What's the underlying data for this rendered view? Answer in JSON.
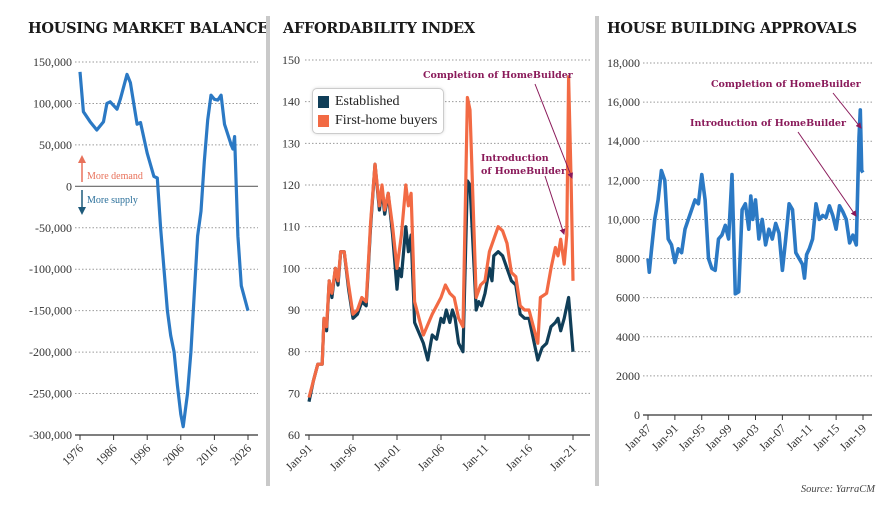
{
  "colors": {
    "balance": "#2b79c4",
    "established": "#103e58",
    "first_home": "#f26a44",
    "approvals": "#2b79c4",
    "annotation": "#8a1a5a",
    "grid": "#9a9a9a"
  },
  "source": "Source: YarraCM",
  "chart_data": [
    {
      "type": "line",
      "title": "HOUSING MARKET BALANCE",
      "xlabel": "",
      "ylabel": "",
      "xlim": [
        1976,
        2026
      ],
      "ylim": [
        -300000,
        150000
      ],
      "xticks": [
        1976,
        1986,
        1996,
        2006,
        2016,
        2026
      ],
      "xtick_labels": [
        "1976",
        "1986",
        "1996",
        "2006",
        "2016",
        "2026"
      ],
      "yticks": [
        150000,
        100000,
        50000,
        0,
        -50000,
        -100000,
        -150000,
        -200000,
        -250000,
        -300000
      ],
      "ytick_labels": [
        "150,000",
        "100,000",
        "50,000",
        "0",
        "-50,000",
        "-100,000",
        "-150,000",
        "-200,000",
        "-250,000",
        "-300,000"
      ],
      "annotations": [
        {
          "text": "More demand",
          "color": "#e8715a"
        },
        {
          "text": "More supply",
          "color": "#2a6f9a"
        }
      ],
      "series": [
        {
          "name": "Housing market balance",
          "x": [
            1976,
            1977,
            1979,
            1981,
            1983,
            1984,
            1985,
            1987,
            1988,
            1990,
            1991,
            1993,
            1994,
            1996,
            1998,
            1999,
            2000,
            2002,
            2003,
            2004,
            2005,
            2006,
            2006.7,
            2008,
            2009,
            2011,
            2012,
            2013,
            2014,
            2015,
            2016,
            2017,
            2018,
            2019,
            2021,
            2021.5,
            2022,
            2023,
            2024,
            2026
          ],
          "y": [
            138000,
            90000,
            78000,
            68000,
            78000,
            100000,
            102000,
            93000,
            105000,
            135000,
            125000,
            75000,
            77000,
            40000,
            12000,
            10000,
            -50000,
            -150000,
            -180000,
            -200000,
            -240000,
            -275000,
            -290000,
            -250000,
            -200000,
            -60000,
            -30000,
            30000,
            80000,
            110000,
            105000,
            104000,
            110000,
            75000,
            50000,
            45000,
            60000,
            -60000,
            -120000,
            -150000
          ]
        }
      ]
    },
    {
      "type": "line",
      "title": "AFFORDABILITY INDEX",
      "xlabel": "",
      "ylabel": "",
      "xlim": [
        1991,
        2021
      ],
      "ylim": [
        60,
        150
      ],
      "xticks": [
        1991,
        1996,
        2001,
        2006,
        2011,
        2016,
        2021
      ],
      "xtick_labels": [
        "Jan-91",
        "Jan-96",
        "Jan-01",
        "Jan-06",
        "Jan-11",
        "Jan-16",
        "Jan-21"
      ],
      "yticks": [
        150,
        140,
        130,
        120,
        110,
        100,
        90,
        80,
        70,
        60
      ],
      "ytick_labels": [
        "150",
        "140",
        "130",
        "120",
        "110",
        "100",
        "90",
        "80",
        "70",
        "60"
      ],
      "legend": [
        "Established",
        "First-home buyers"
      ],
      "annotations": [
        {
          "text": "Completion of HomeBuilder"
        },
        {
          "text": "Introduction",
          "text2": "of HomeBuilder"
        }
      ],
      "series": [
        {
          "name": "Established",
          "x": [
            1991,
            1991.5,
            1992,
            1992.5,
            1992.7,
            1993,
            1993.3,
            1993.6,
            1994,
            1994.3,
            1994.6,
            1995,
            1995.5,
            1996,
            1996.5,
            1997,
            1997.5,
            1998,
            1998.5,
            1999,
            1999.3,
            1999.6,
            2000,
            2000.5,
            2001,
            2001.2,
            2001.5,
            2002,
            2002.3,
            2002.6,
            2003,
            2004,
            2004.5,
            2005,
            2005.5,
            2006,
            2006.3,
            2006.6,
            2007,
            2007.3,
            2007.6,
            2008,
            2008.5,
            2009,
            2009.3,
            2010,
            2010.3,
            2010.6,
            2011,
            2011.5,
            2011.8,
            2012,
            2012.5,
            2013,
            2013.5,
            2014,
            2014.5,
            2015,
            2015.5,
            2016,
            2017,
            2017.5,
            2018,
            2018.5,
            2019,
            2019.3,
            2019.6,
            2020,
            2020.5,
            2021
          ],
          "y": [
            68,
            73,
            77,
            77,
            88,
            85,
            97,
            93,
            100,
            96,
            104,
            104,
            95,
            88,
            89,
            92,
            91,
            110,
            125,
            114,
            119,
            113,
            118,
            108,
            95,
            100,
            98,
            110,
            104,
            108,
            87,
            82,
            78,
            84,
            83,
            88,
            87,
            90,
            87,
            90,
            88,
            82,
            80,
            121,
            120,
            90,
            92,
            91,
            94,
            100,
            97,
            103,
            104,
            103,
            100,
            97,
            96,
            89,
            88,
            88,
            78,
            81,
            82,
            86,
            87,
            88,
            85,
            88,
            93,
            80
          ]
        },
        {
          "name": "First-home buyers",
          "x": [
            1991,
            1991.5,
            1992,
            1992.5,
            1992.7,
            1993,
            1993.3,
            1993.6,
            1994,
            1994.3,
            1994.6,
            1995,
            1995.5,
            1996,
            1996.5,
            1997,
            1997.5,
            1998,
            1998.5,
            1999,
            1999.3,
            1999.6,
            2000,
            2000.5,
            2001,
            2001.5,
            2002,
            2002.3,
            2002.6,
            2003,
            2004,
            2005,
            2006,
            2006.5,
            2007,
            2007.5,
            2008,
            2008.5,
            2009,
            2009.3,
            2010,
            2010.5,
            2011,
            2011.5,
            2012,
            2012.5,
            2013,
            2013.5,
            2014,
            2014.5,
            2015,
            2015.5,
            2016,
            2017,
            2017.3,
            2018,
            2018.5,
            2019,
            2019.3,
            2019.6,
            2020,
            2020.3,
            2020.5,
            2020.8,
            2021
          ],
          "y": [
            69,
            73,
            77,
            77,
            88,
            86,
            97,
            94,
            100,
            97,
            104,
            104,
            96,
            89,
            90,
            93,
            92,
            111,
            125,
            115,
            120,
            114,
            118,
            110,
            100,
            108,
            120,
            115,
            118,
            92,
            84,
            89,
            93,
            96,
            94,
            93,
            88,
            86,
            141,
            138,
            93,
            96,
            97,
            104,
            107,
            110,
            109,
            106,
            99,
            98,
            91,
            90,
            90,
            82,
            93,
            94,
            100,
            105,
            103,
            107,
            101,
            108,
            146,
            120,
            97
          ]
        }
      ]
    },
    {
      "type": "line",
      "title": "HOUSE BUILDING APPROVALS",
      "xlabel": "",
      "ylabel": "",
      "xlim": [
        1987,
        2019
      ],
      "ylim": [
        0,
        18000
      ],
      "xticks": [
        1987,
        1991,
        1995,
        1999,
        2003,
        2007,
        2011,
        2015,
        2019
      ],
      "xtick_labels": [
        "Jan-87",
        "Jan-91",
        "Jan-95",
        "Jan-99",
        "Jan-03",
        "Jan-07",
        "Jan-11",
        "Jan-15",
        "Jan-19"
      ],
      "yticks": [
        18000,
        16000,
        14000,
        12000,
        10000,
        8000,
        6000,
        4000,
        2000,
        0
      ],
      "ytick_labels": [
        "18,000",
        "16,000",
        "14,000",
        "12,000",
        "10,000",
        "8000",
        "6000",
        "4000",
        "2000",
        "0"
      ],
      "annotations": [
        {
          "text": "Completion of HomeBuilder"
        },
        {
          "text": "Introduction of HomeBuilder"
        }
      ],
      "series": [
        {
          "name": "House building approvals",
          "x": [
            1987,
            1987.2,
            1987.5,
            1988,
            1988.5,
            1989,
            1989.5,
            1990,
            1990.5,
            1991,
            1991.5,
            1992,
            1992.5,
            1993,
            1994,
            1994.5,
            1995,
            1995.5,
            1996,
            1996.5,
            1997,
            1997.5,
            1998,
            1998.5,
            1999,
            1999.5,
            2000,
            2000.5,
            2001,
            2001.5,
            2002,
            2002.3,
            2002.6,
            2003,
            2003.5,
            2004,
            2004.5,
            2005,
            2005.5,
            2006,
            2006.5,
            2007,
            2007.5,
            2008,
            2008.5,
            2009,
            2009.5,
            2010,
            2010.3,
            2010.6,
            2011,
            2011.5,
            2012,
            2012.5,
            2013,
            2013.5,
            2014,
            2014.5,
            2015,
            2015.5,
            2016,
            2016.5,
            2017,
            2017.5,
            2018,
            2018.4,
            2018.6,
            2018.8,
            2019
          ],
          "y": [
            8000,
            7300,
            8400,
            10000,
            11000,
            12500,
            12000,
            9000,
            8700,
            7800,
            8500,
            8300,
            9500,
            10000,
            11000,
            10800,
            12300,
            11000,
            8000,
            7500,
            7400,
            9000,
            9200,
            9700,
            9000,
            12300,
            6200,
            6300,
            10500,
            10800,
            9500,
            11200,
            10000,
            11000,
            9000,
            10000,
            8700,
            9500,
            9000,
            9800,
            9300,
            7400,
            9000,
            10800,
            10500,
            8300,
            8000,
            7700,
            7000,
            8200,
            8500,
            9000,
            10800,
            10000,
            10200,
            10100,
            10700,
            10200,
            9500,
            10700,
            10400,
            10000,
            8800,
            9200,
            8700,
            14200,
            15600,
            12500,
            12400
          ]
        }
      ]
    }
  ]
}
